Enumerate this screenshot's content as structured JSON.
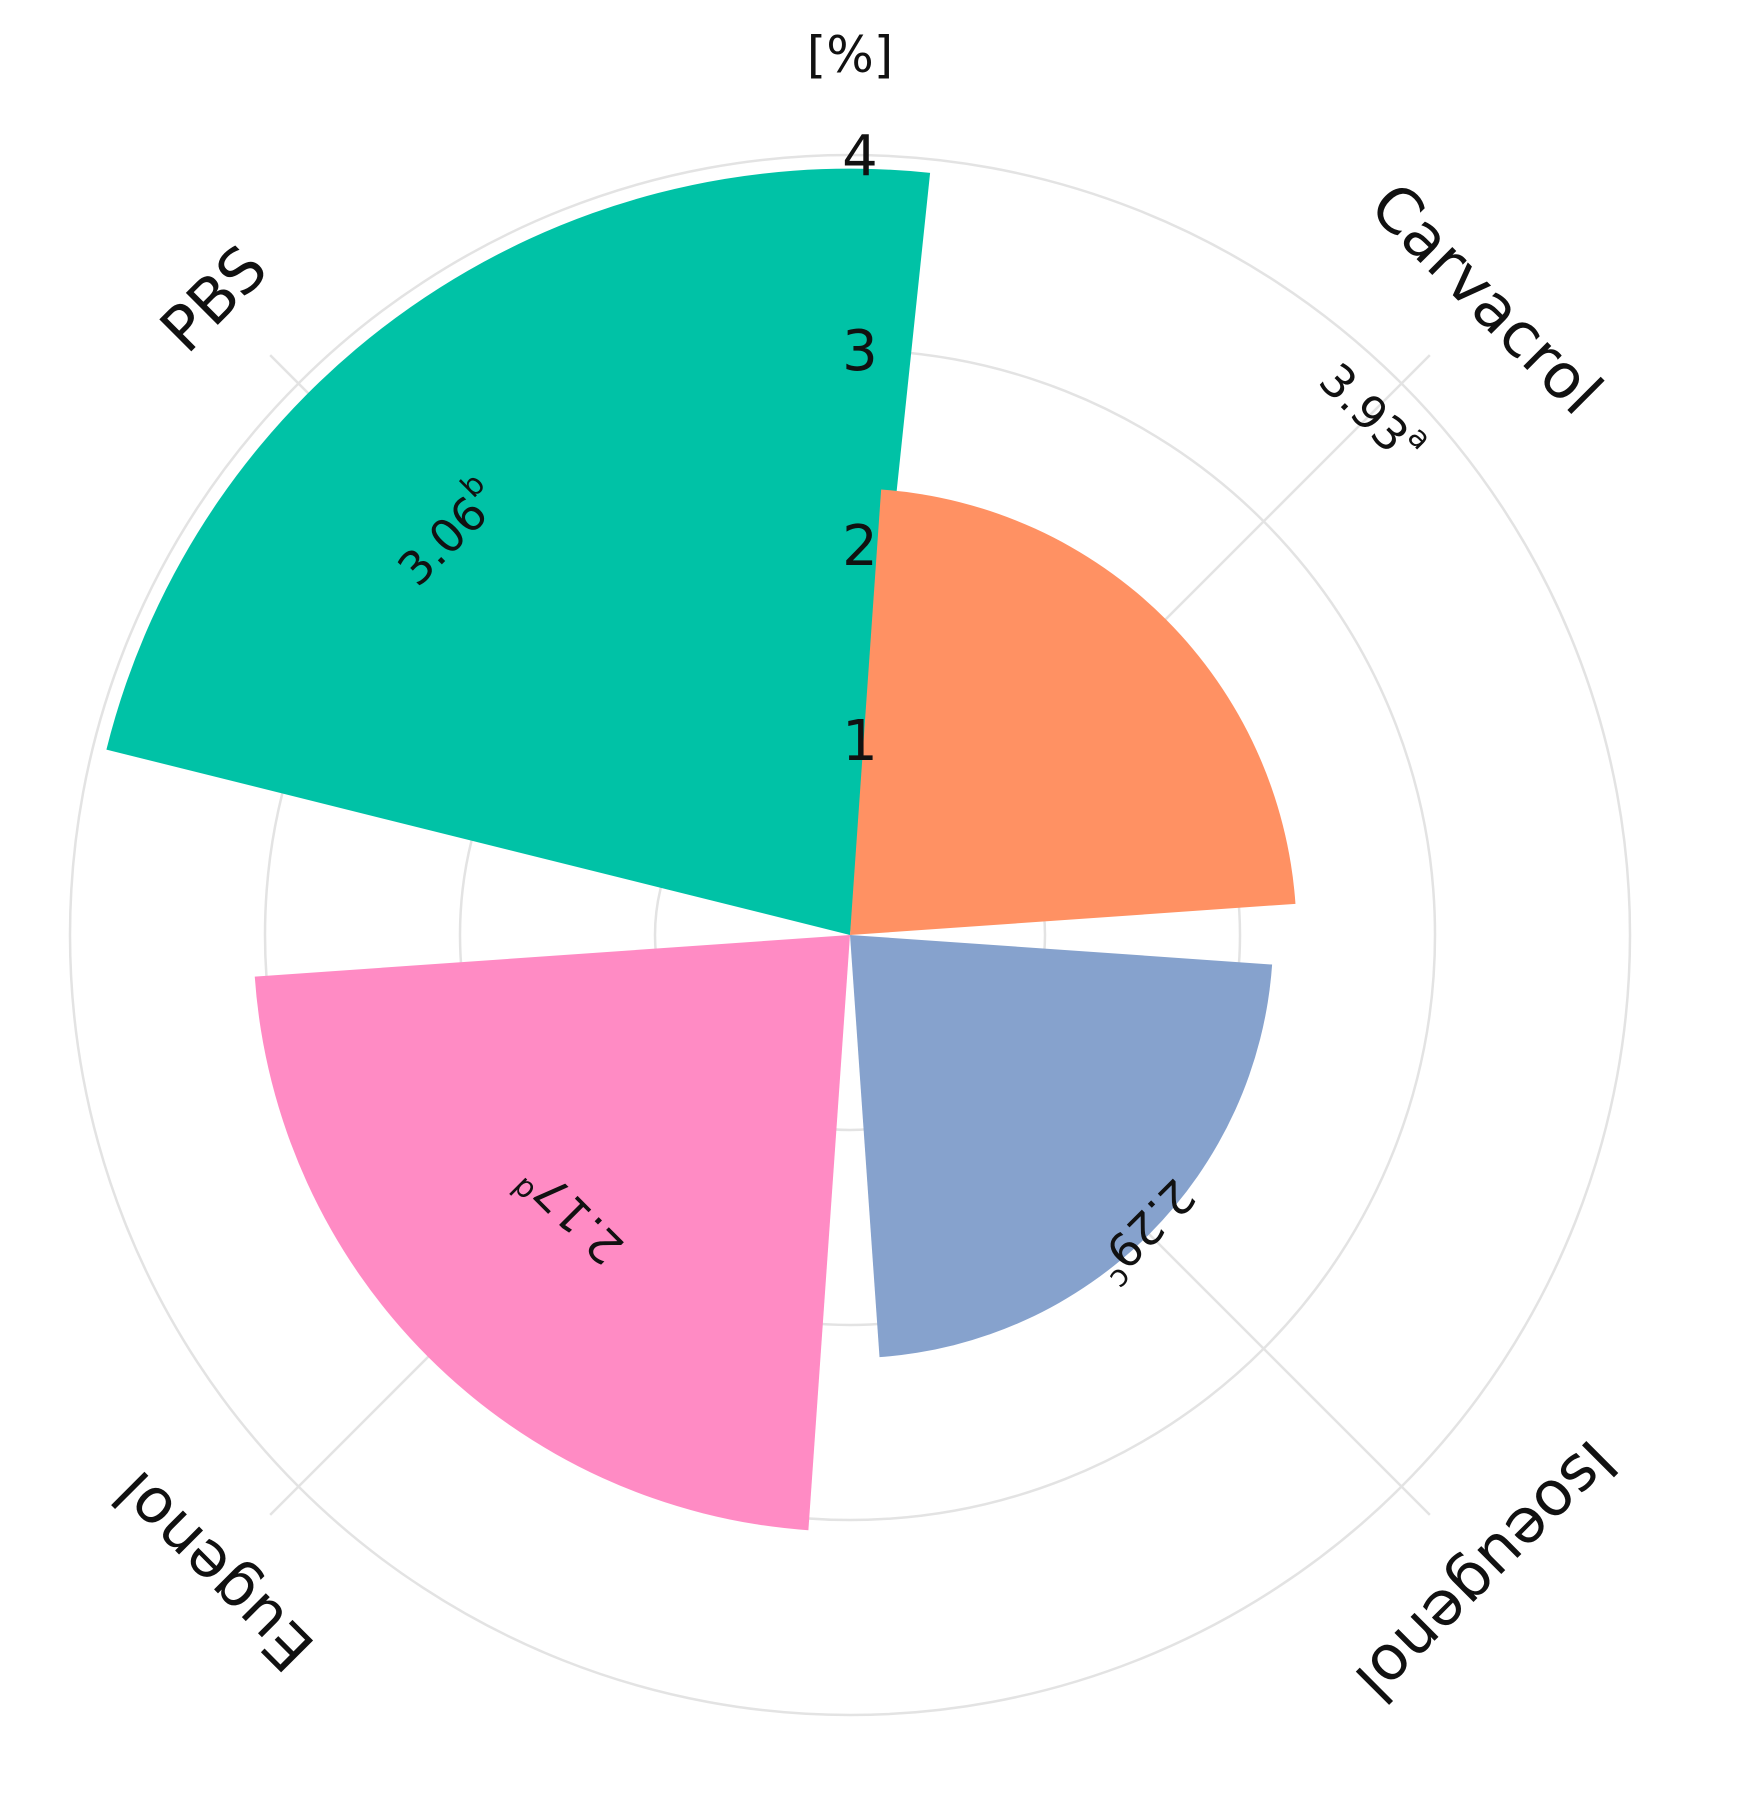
{
  "chart_data": {
    "type": "polar-bar",
    "unit_label": "[%]",
    "r_ticks": [
      1,
      2,
      3,
      4
    ],
    "r_max": 4,
    "grid": true,
    "categories": [
      "Carvacrol",
      "Isoeugenol",
      "Eugenol",
      "PBS"
    ],
    "values": [
      3.93,
      2.29,
      2.17,
      3.06
    ],
    "value_labels": [
      "3.93",
      "2.29",
      "2.17",
      "3.06"
    ],
    "significance": [
      "a",
      "c",
      "d",
      "b"
    ],
    "colors": [
      "#00c2a6",
      "#ff9163",
      "#86a2cd",
      "#ff8bc4"
    ]
  }
}
